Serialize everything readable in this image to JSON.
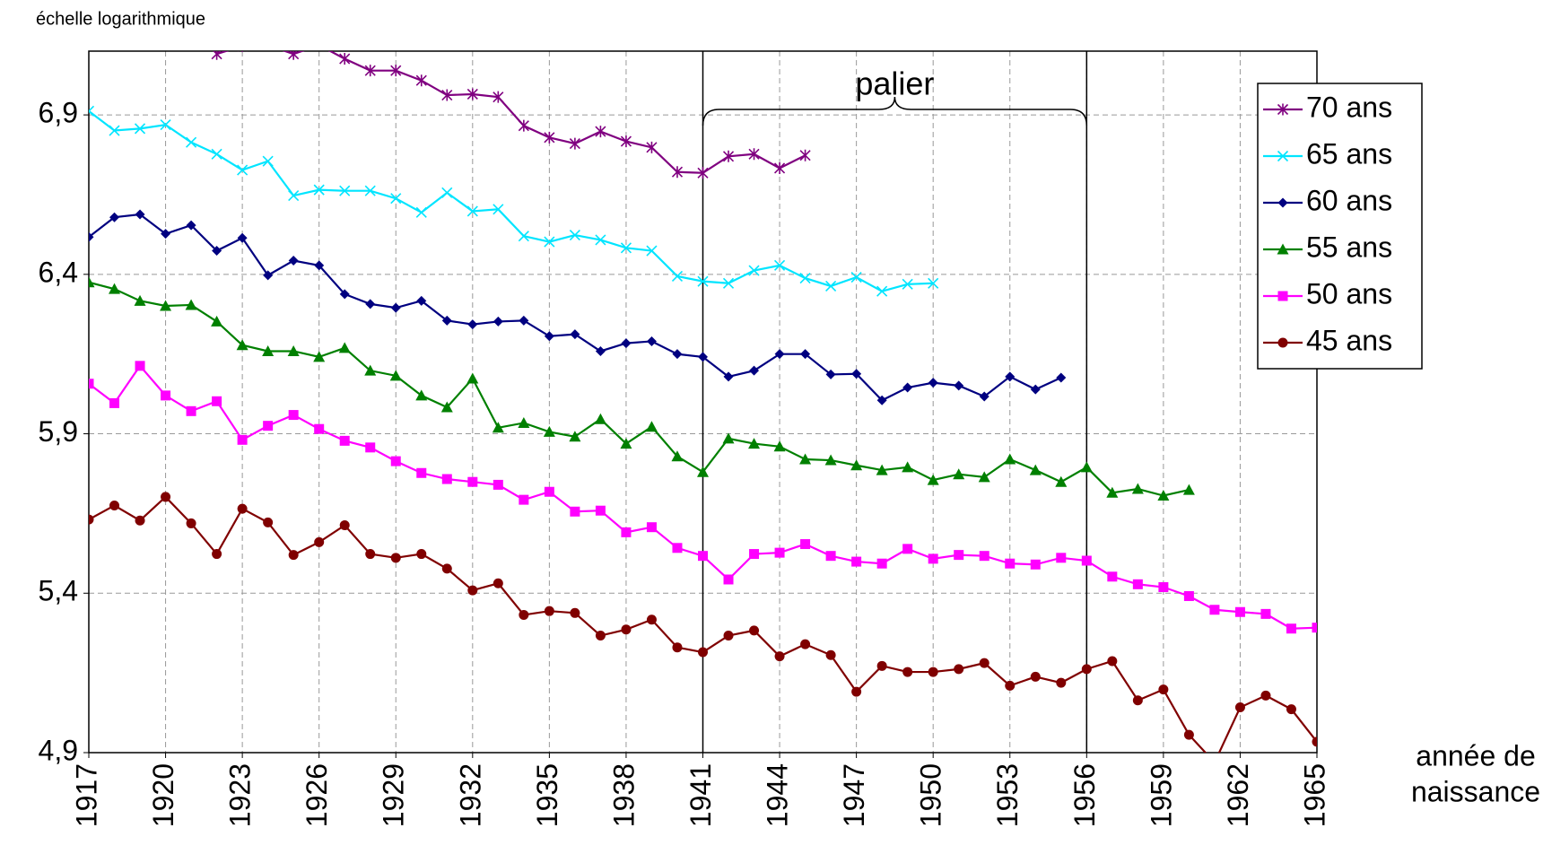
{
  "chart_data": {
    "type": "line",
    "y_label": "échelle logarithmique",
    "x_label": [
      "année de",
      "naissance"
    ],
    "annotation": {
      "text": "palier",
      "x_start": 1941,
      "x_end": 1956
    },
    "xlim": [
      1917,
      1965
    ],
    "xticks": [
      1917,
      1920,
      1923,
      1926,
      1929,
      1932,
      1935,
      1938,
      1941,
      1944,
      1947,
      1950,
      1953,
      1956,
      1959,
      1962,
      1965
    ],
    "ylim": [
      4.9,
      7.1
    ],
    "yticks": [
      {
        "value": 4.9,
        "label": "4,9"
      },
      {
        "value": 5.4,
        "label": "5,4"
      },
      {
        "value": 5.9,
        "label": "5,9"
      },
      {
        "value": 6.4,
        "label": "6,4"
      },
      {
        "value": 6.9,
        "label": "6,9"
      }
    ],
    "grid": true,
    "legend": "right",
    "x": [
      1917,
      1918,
      1919,
      1920,
      1921,
      1922,
      1923,
      1924,
      1925,
      1926,
      1927,
      1928,
      1929,
      1930,
      1931,
      1932,
      1933,
      1934,
      1935,
      1936,
      1937,
      1938,
      1939,
      1940,
      1941,
      1942,
      1943,
      1944,
      1945,
      1946,
      1947,
      1948,
      1949,
      1950,
      1951,
      1952,
      1953,
      1954,
      1955,
      1956,
      1957,
      1958,
      1959,
      1960,
      1961,
      1962,
      1963,
      1964,
      1965
    ],
    "series": [
      {
        "name": "70 ans",
        "color": "#800080",
        "marker": "star",
        "values": [
          null,
          null,
          null,
          null,
          null,
          7.091,
          7.116,
          7.119,
          7.091,
          7.119,
          7.076,
          7.039,
          7.039,
          7.008,
          6.962,
          6.965,
          6.956,
          6.866,
          6.829,
          6.81,
          6.848,
          6.817,
          6.798,
          6.721,
          6.718,
          6.77,
          6.777,
          6.733,
          6.773,
          null,
          null,
          null,
          null,
          null,
          null,
          null,
          null,
          null,
          null,
          null,
          null,
          null,
          null,
          null,
          null,
          null,
          null,
          null,
          null
        ]
      },
      {
        "name": "65 ans",
        "color": "#00e5ff",
        "marker": "x",
        "values": [
          6.912,
          6.851,
          6.857,
          6.869,
          6.814,
          6.777,
          6.727,
          6.755,
          6.647,
          6.665,
          6.662,
          6.662,
          6.638,
          6.594,
          6.656,
          6.598,
          6.604,
          6.52,
          6.502,
          6.523,
          6.508,
          6.483,
          6.474,
          6.394,
          6.378,
          6.372,
          6.412,
          6.428,
          6.388,
          6.363,
          6.391,
          6.347,
          6.369,
          6.372,
          null,
          null,
          null,
          null,
          null,
          null,
          null,
          null,
          null,
          null,
          null,
          null,
          null,
          null,
          null
        ]
      },
      {
        "name": "60 ans",
        "color": "#000080",
        "marker": "diamond",
        "values": [
          6.517,
          6.579,
          6.588,
          6.527,
          6.554,
          6.474,
          6.514,
          6.397,
          6.443,
          6.428,
          6.338,
          6.307,
          6.295,
          6.317,
          6.255,
          6.243,
          6.252,
          6.255,
          6.206,
          6.212,
          6.159,
          6.184,
          6.19,
          6.15,
          6.141,
          6.079,
          6.098,
          6.15,
          6.15,
          6.086,
          6.088,
          6.005,
          6.045,
          6.06,
          6.051,
          6.017,
          6.079,
          6.039,
          6.076,
          null,
          null,
          null,
          null,
          null,
          null,
          null,
          null,
          null,
          null
        ]
      },
      {
        "name": "55 ans",
        "color": "#008000",
        "marker": "triangle",
        "values": [
          6.375,
          6.354,
          6.317,
          6.301,
          6.304,
          6.252,
          6.178,
          6.159,
          6.159,
          6.141,
          6.169,
          6.098,
          6.082,
          6.02,
          5.983,
          6.073,
          5.919,
          5.934,
          5.906,
          5.891,
          5.946,
          5.869,
          5.922,
          5.829,
          5.78,
          5.885,
          5.869,
          5.86,
          5.82,
          5.817,
          5.801,
          5.786,
          5.795,
          5.755,
          5.773,
          5.764,
          5.82,
          5.786,
          5.749,
          5.795,
          5.715,
          5.727,
          5.706,
          5.724,
          null,
          null,
          null,
          null,
          null
        ]
      },
      {
        "name": "50 ans",
        "color": "#ff00ff",
        "marker": "square",
        "values": [
          6.057,
          5.996,
          6.113,
          6.02,
          5.971,
          6.002,
          5.881,
          5.925,
          5.959,
          5.915,
          5.878,
          5.857,
          5.814,
          5.777,
          5.758,
          5.749,
          5.74,
          5.693,
          5.718,
          5.656,
          5.659,
          5.591,
          5.607,
          5.542,
          5.517,
          5.443,
          5.523,
          5.527,
          5.554,
          5.517,
          5.499,
          5.493,
          5.539,
          5.508,
          5.52,
          5.517,
          5.493,
          5.49,
          5.511,
          5.502,
          5.452,
          5.428,
          5.419,
          5.391,
          5.348,
          5.341,
          5.335,
          5.289,
          5.292
        ]
      },
      {
        "name": "45 ans",
        "color": "#800000",
        "marker": "circle",
        "values": [
          5.631,
          5.675,
          5.628,
          5.702,
          5.619,
          5.523,
          5.665,
          5.622,
          5.52,
          5.56,
          5.613,
          5.523,
          5.511,
          5.523,
          5.477,
          5.409,
          5.431,
          5.332,
          5.344,
          5.338,
          5.267,
          5.286,
          5.317,
          5.23,
          5.215,
          5.267,
          5.283,
          5.202,
          5.24,
          5.206,
          5.091,
          5.172,
          5.153,
          5.153,
          5.162,
          5.181,
          5.11,
          5.138,
          5.119,
          5.162,
          5.187,
          5.064,
          5.098,
          4.956,
          4.869,
          5.042,
          5.079,
          5.036,
          4.934
        ]
      }
    ]
  }
}
